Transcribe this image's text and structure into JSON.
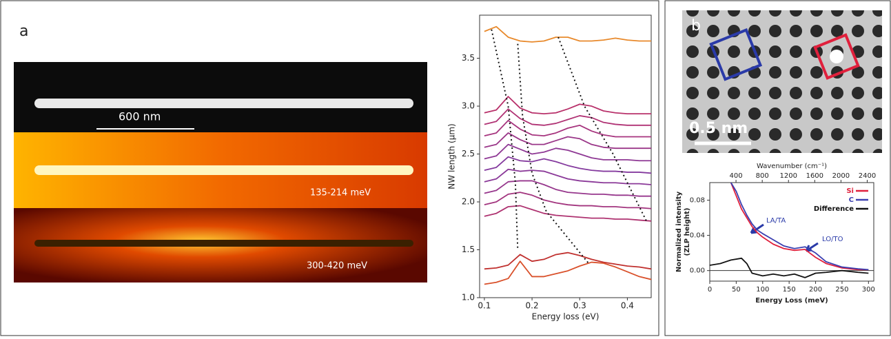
{
  "panel_a": {
    "label": "a",
    "scale_bar": "600 nm",
    "map_1": "135-214 meV",
    "map_2": "300-420 meV"
  },
  "panel_b": {
    "label": "b",
    "scale_bar": "0.5 nm"
  },
  "chart_data": [
    {
      "type": "line",
      "xlabel": "Energy loss (eV)",
      "ylabel": "NW length (µm)",
      "xlim": [
        0.09,
        0.45
      ],
      "ylim": [
        1.0,
        3.95
      ],
      "xticks": [
        0.1,
        0.2,
        0.3,
        0.4
      ],
      "yticks": [
        {
          "value": 1,
          "label": "1.0"
        },
        1.5,
        {
          "value": 2,
          "label": "2.0"
        },
        2.5,
        {
          "value": 3,
          "label": "3.0"
        },
        3.5
      ],
      "x": [
        0.1,
        0.125,
        0.15,
        0.175,
        0.2,
        0.225,
        0.25,
        0.275,
        0.3,
        0.325,
        0.35,
        0.375,
        0.4,
        0.425,
        0.45
      ],
      "series": [
        {
          "color": "#e8892b",
          "values": [
            3.78,
            3.83,
            3.72,
            3.68,
            3.67,
            3.68,
            3.72,
            3.72,
            3.68,
            3.68,
            3.69,
            3.71,
            3.69,
            3.68,
            3.68
          ]
        },
        {
          "color": "#b8306a",
          "values": [
            2.93,
            2.96,
            3.1,
            2.98,
            2.93,
            2.92,
            2.93,
            2.97,
            3.02,
            3.0,
            2.95,
            2.93,
            2.92,
            2.92,
            2.92
          ]
        },
        {
          "color": "#b03274",
          "values": [
            2.81,
            2.84,
            2.97,
            2.87,
            2.81,
            2.8,
            2.82,
            2.86,
            2.9,
            2.88,
            2.83,
            2.81,
            2.8,
            2.8,
            2.8
          ]
        },
        {
          "color": "#a6347e",
          "values": [
            2.69,
            2.72,
            2.85,
            2.76,
            2.7,
            2.69,
            2.72,
            2.77,
            2.8,
            2.74,
            2.7,
            2.68,
            2.68,
            2.68,
            2.68
          ]
        },
        {
          "color": "#9a3688",
          "values": [
            2.57,
            2.6,
            2.72,
            2.65,
            2.6,
            2.6,
            2.64,
            2.68,
            2.66,
            2.6,
            2.57,
            2.56,
            2.56,
            2.56,
            2.56
          ]
        },
        {
          "color": "#8e3894",
          "values": [
            2.45,
            2.48,
            2.6,
            2.55,
            2.5,
            2.52,
            2.56,
            2.54,
            2.5,
            2.46,
            2.44,
            2.44,
            2.44,
            2.43,
            2.43
          ]
        },
        {
          "color": "#843a9e",
          "values": [
            2.33,
            2.36,
            2.47,
            2.43,
            2.42,
            2.45,
            2.42,
            2.38,
            2.35,
            2.33,
            2.32,
            2.32,
            2.31,
            2.31,
            2.3
          ]
        },
        {
          "color": "#8a3898",
          "values": [
            2.21,
            2.24,
            2.34,
            2.32,
            2.33,
            2.32,
            2.28,
            2.24,
            2.22,
            2.21,
            2.2,
            2.2,
            2.19,
            2.19,
            2.18
          ]
        },
        {
          "color": "#96368c",
          "values": [
            2.09,
            2.12,
            2.21,
            2.22,
            2.22,
            2.18,
            2.13,
            2.1,
            2.09,
            2.08,
            2.08,
            2.07,
            2.07,
            2.06,
            2.06
          ]
        },
        {
          "color": "#a2347e",
          "values": [
            1.97,
            2.0,
            2.08,
            2.1,
            2.07,
            2.02,
            1.99,
            1.97,
            1.96,
            1.96,
            1.95,
            1.95,
            1.94,
            1.94,
            1.93
          ]
        },
        {
          "color": "#ae3270",
          "values": [
            1.85,
            1.88,
            1.95,
            1.96,
            1.92,
            1.88,
            1.86,
            1.85,
            1.84,
            1.83,
            1.83,
            1.82,
            1.82,
            1.81,
            1.8
          ]
        },
        {
          "color": "#c0302e",
          "values": [
            1.3,
            1.31,
            1.34,
            1.45,
            1.38,
            1.4,
            1.45,
            1.47,
            1.44,
            1.4,
            1.37,
            1.35,
            1.33,
            1.32,
            1.3
          ]
        },
        {
          "color": "#d9502a",
          "values": [
            1.14,
            1.16,
            1.2,
            1.38,
            1.22,
            1.22,
            1.25,
            1.28,
            1.33,
            1.37,
            1.36,
            1.32,
            1.27,
            1.22,
            1.19
          ]
        },
        {
          "color": "#111111",
          "dash": true,
          "x": [
            0.115,
            0.15,
            0.165,
            0.17
          ],
          "values": [
            3.8,
            3.0,
            2.2,
            1.5
          ]
        },
        {
          "color": "#111111",
          "dash": true,
          "x": [
            0.17,
            0.18,
            0.2,
            0.23,
            0.32
          ],
          "values": [
            3.65,
            2.9,
            2.3,
            1.9,
            1.35
          ]
        },
        {
          "color": "#111111",
          "dash": true,
          "x": [
            0.255,
            0.31,
            0.37,
            0.44
          ],
          "values": [
            3.72,
            3.0,
            2.5,
            1.8
          ]
        }
      ]
    },
    {
      "type": "line",
      "xlabel": "Energy Loss (meV)",
      "ylabel": [
        "Normalized intensity",
        "(ZLP height)"
      ],
      "x2label": "Wavenumber (cm⁻¹)",
      "xlim": [
        0,
        310
      ],
      "ylim": [
        -0.012,
        0.1
      ],
      "x2lim": [
        0,
        2500
      ],
      "xticks": [
        0,
        50,
        100,
        150,
        200,
        250,
        300
      ],
      "x2ticks": [
        400,
        800,
        1200,
        1600,
        2000,
        2400
      ],
      "yticks": [
        {
          "value": 0,
          "label": "0.00"
        },
        {
          "value": 0.04,
          "label": "0.04"
        },
        {
          "value": 0.08,
          "label": "0.08"
        }
      ],
      "legend": "upper right",
      "annotations": [
        "LA/TA",
        "LO/TO"
      ],
      "series": [
        {
          "name": "Si",
          "color": "#e0203c",
          "x": [
            40,
            50,
            60,
            70,
            80,
            90,
            100,
            120,
            140,
            160,
            180,
            200,
            220,
            250,
            280,
            300
          ],
          "values": [
            0.1,
            0.085,
            0.07,
            0.06,
            0.05,
            0.043,
            0.038,
            0.03,
            0.025,
            0.023,
            0.024,
            0.015,
            0.008,
            0.003,
            0.001,
            0.001
          ]
        },
        {
          "name": "C",
          "color": "#3a3fb0",
          "x": [
            40,
            50,
            60,
            70,
            80,
            90,
            100,
            120,
            140,
            160,
            180,
            200,
            220,
            250,
            280,
            300
          ],
          "values": [
            0.1,
            0.09,
            0.075,
            0.063,
            0.053,
            0.046,
            0.042,
            0.035,
            0.028,
            0.025,
            0.027,
            0.02,
            0.01,
            0.004,
            0.002,
            0.001
          ]
        },
        {
          "name": "Difference",
          "color": "#111111",
          "x": [
            0,
            20,
            40,
            60,
            70,
            80,
            100,
            120,
            140,
            160,
            180,
            200,
            220,
            250,
            280,
            300
          ],
          "values": [
            0.006,
            0.008,
            0.012,
            0.014,
            0.008,
            -0.003,
            -0.006,
            -0.004,
            -0.006,
            -0.004,
            -0.008,
            -0.003,
            -0.002,
            0,
            -0.002,
            -0.003
          ]
        }
      ]
    }
  ]
}
